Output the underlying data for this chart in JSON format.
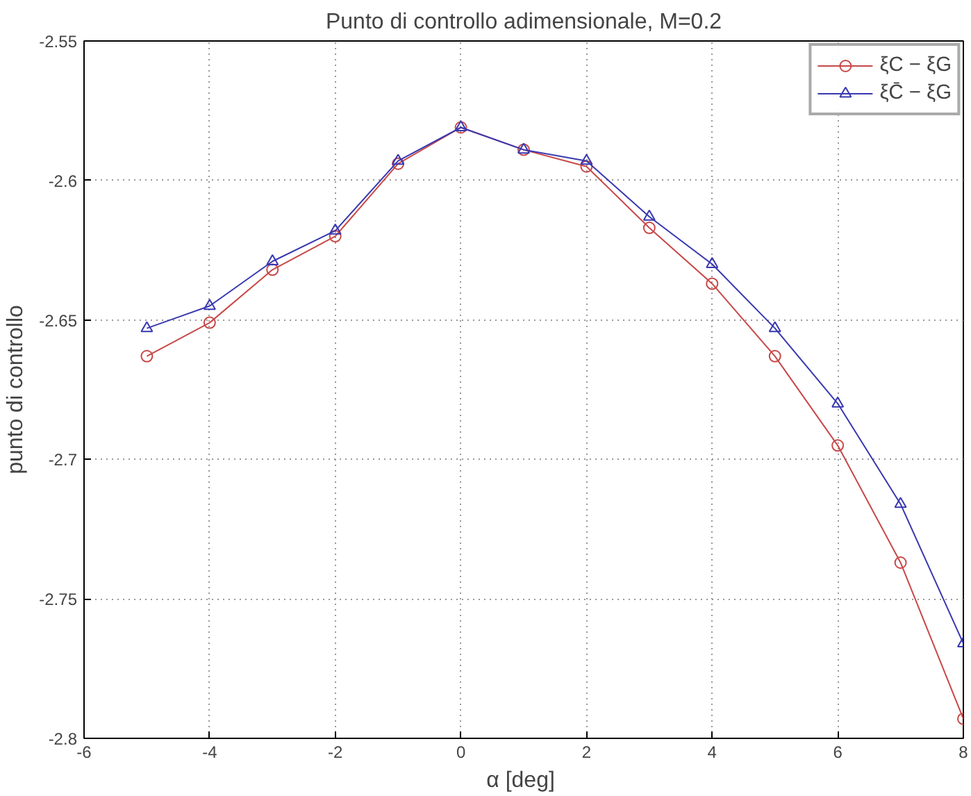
{
  "chart_data": {
    "type": "line",
    "title": "Punto di controllo adimensionale, M=0.2",
    "xlabel": "α  [deg]",
    "ylabel": "punto di controllo",
    "x": [
      -5,
      -4,
      -3,
      -2,
      -1,
      0,
      1,
      2,
      3,
      4,
      5,
      6,
      7,
      8
    ],
    "series": [
      {
        "name": "ξC − ξG",
        "color": "#c84848",
        "marker": "circle",
        "values": [
          -2.663,
          -2.651,
          -2.632,
          -2.62,
          -2.594,
          -2.581,
          -2.589,
          -2.595,
          -2.617,
          -2.637,
          -2.663,
          -2.695,
          -2.737,
          -2.793
        ]
      },
      {
        "name": "ξC̄ − ξG",
        "color": "#3838b0",
        "marker": "triangle",
        "values": [
          -2.653,
          -2.645,
          -2.629,
          -2.618,
          -2.593,
          -2.581,
          -2.589,
          -2.593,
          -2.613,
          -2.63,
          -2.653,
          -2.68,
          -2.716,
          -2.766
        ]
      }
    ],
    "xlim": [
      -6,
      8
    ],
    "xticks": [
      -6,
      -4,
      -2,
      0,
      2,
      4,
      6,
      8
    ],
    "ylim": [
      -2.8,
      -2.55
    ],
    "yticks": [
      -2.8,
      -2.75,
      -2.7,
      -2.65,
      -2.6,
      -2.55
    ],
    "grid": true,
    "legend": "top right",
    "line_style": "solid"
  }
}
